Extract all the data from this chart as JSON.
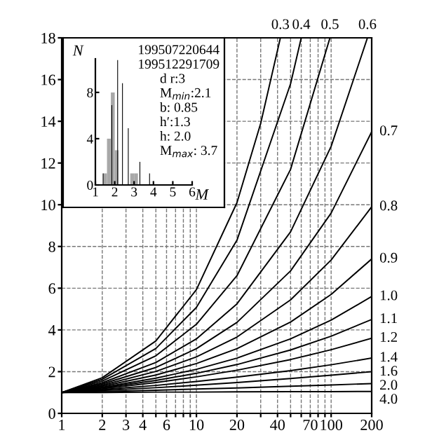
{
  "chart_data": [
    {
      "type": "line",
      "log": "x",
      "xlim": [
        1,
        200
      ],
      "ylim": [
        0,
        18
      ],
      "xticks": [
        1,
        2,
        3,
        4,
        {
          "value": 5,
          "label": null
        },
        6,
        {
          "value": 7,
          "label": null
        },
        {
          "value": 8,
          "label": null
        },
        {
          "value": 9,
          "label": null
        },
        10,
        20,
        {
          "value": 30,
          "label": null
        },
        40,
        {
          "value": 50,
          "label": null
        },
        {
          "value": 60,
          "label": null
        },
        70,
        {
          "value": 80,
          "label": null
        },
        {
          "value": 90,
          "label": null
        },
        100,
        200
      ],
      "yticks": [
        0,
        2,
        4,
        6,
        8,
        10,
        12,
        14,
        16,
        18
      ],
      "grid": true,
      "legend": false,
      "line_style": "solid",
      "marker": "none",
      "series": [
        {
          "name": "0.3",
          "color": "#000000",
          "x": [
            1,
            2,
            5,
            10,
            20,
            30,
            42
          ],
          "values": [
            1,
            1.71,
            3.47,
            5.93,
            10.1,
            13.9,
            18
          ]
        },
        {
          "name": "0.4",
          "color": "#000000",
          "x": [
            1,
            2,
            5,
            10,
            20,
            50,
            60
          ],
          "values": [
            1,
            1.63,
            3.11,
            5.08,
            8.3,
            15.8,
            18
          ]
        },
        {
          "name": "0.5",
          "color": "#000000",
          "x": [
            1,
            2,
            5,
            10,
            20,
            50,
            98
          ],
          "values": [
            1,
            1.55,
            2.76,
            4.27,
            6.6,
            11.7,
            18
          ]
        },
        {
          "name": "0.6",
          "color": "#000000",
          "x": [
            1,
            2,
            5,
            10,
            20,
            50,
            100,
            186
          ],
          "values": [
            1,
            1.47,
            2.44,
            3.57,
            5.25,
            8.7,
            12.8,
            18
          ]
        },
        {
          "name": "0.7",
          "color": "#000000",
          "x": [
            1,
            2,
            5,
            10,
            20,
            50,
            100,
            200
          ],
          "values": [
            1,
            1.41,
            2.2,
            3.1,
            4.36,
            6.83,
            9.6,
            13.5
          ]
        },
        {
          "name": "0.8",
          "color": "#000000",
          "x": [
            1,
            2,
            5,
            10,
            20,
            50,
            100,
            200
          ],
          "values": [
            1,
            1.35,
            2.01,
            2.71,
            3.66,
            5.44,
            7.35,
            9.9
          ]
        },
        {
          "name": "0.9",
          "color": "#000000",
          "x": [
            1,
            2,
            5,
            10,
            20,
            50,
            100,
            200
          ],
          "values": [
            1,
            1.3,
            1.84,
            2.39,
            3.1,
            4.38,
            5.7,
            7.4
          ]
        },
        {
          "name": "1.0",
          "color": "#000000",
          "x": [
            1,
            2,
            5,
            10,
            20,
            50,
            100,
            200
          ],
          "values": [
            1,
            1.25,
            1.69,
            2.11,
            2.65,
            3.57,
            4.47,
            5.6
          ]
        },
        {
          "name": "1.1",
          "color": "#000000",
          "x": [
            1,
            2,
            5,
            10,
            20,
            50,
            100,
            200
          ],
          "values": [
            1,
            1.22,
            1.58,
            1.92,
            2.34,
            3.04,
            3.7,
            4.5
          ]
        },
        {
          "name": "1.2",
          "color": "#000000",
          "x": [
            1,
            2,
            5,
            10,
            20,
            50,
            100,
            200
          ],
          "values": [
            1,
            1.18,
            1.48,
            1.75,
            2.07,
            2.58,
            3.05,
            3.6
          ]
        },
        {
          "name": "1.4",
          "color": "#000000",
          "x": [
            1,
            2,
            5,
            10,
            20,
            50,
            100,
            200
          ],
          "values": [
            1,
            1.14,
            1.34,
            1.53,
            1.74,
            2.05,
            2.33,
            2.65
          ]
        },
        {
          "name": "1.6",
          "color": "#000000",
          "x": [
            1,
            2,
            5,
            10,
            20,
            50,
            100,
            200
          ],
          "values": [
            1,
            1.1,
            1.23,
            1.35,
            1.48,
            1.67,
            1.83,
            2.0
          ]
        },
        {
          "name": "2.0",
          "color": "#000000",
          "x": [
            1,
            2,
            5,
            10,
            20,
            50,
            100,
            200
          ],
          "values": [
            1,
            1.05,
            1.11,
            1.17,
            1.22,
            1.3,
            1.36,
            1.43
          ]
        },
        {
          "name": "4.0",
          "color": "#000000",
          "x": [
            1,
            2,
            5,
            10,
            20,
            50,
            100,
            200
          ],
          "values": [
            1,
            1.0,
            1.02,
            1.02,
            1.03,
            1.04,
            1.04,
            1.05
          ]
        }
      ]
    },
    {
      "type": "histogram",
      "xlabel": "M",
      "ylabel": "N",
      "xlim": [
        1,
        6
      ],
      "ylim": [
        0,
        10.9
      ],
      "xticks": [
        1,
        2,
        3,
        4,
        5,
        6
      ],
      "yticks": [
        0,
        4,
        8
      ],
      "grid": false,
      "annotations": [
        "199507220644",
        "199512291709",
        "d r:3",
        "M$_{min}$:2.1",
        "b: 0.85",
        "h′:1.3",
        "h: 2.0",
        "M$_{max}$: 3.7"
      ],
      "series": [
        {
          "type": "histogram",
          "color": "#a8a8a8",
          "bins": [
            1.4,
            1.6,
            1.8,
            2.0,
            2.2,
            2.4,
            2.6,
            2.8,
            3.0,
            3.2
          ],
          "values": [
            1,
            4,
            8,
            3,
            0,
            0,
            0,
            1,
            1
          ]
        },
        {
          "type": "bar",
          "color": "#000000",
          "x": [
            1.4,
            1.85,
            2.15,
            2.4,
            2.7,
            3.3,
            3.8
          ],
          "values": [
            1,
            6.9,
            10.8,
            8.8,
            4.9,
            2.0,
            1.0
          ]
        }
      ]
    }
  ]
}
